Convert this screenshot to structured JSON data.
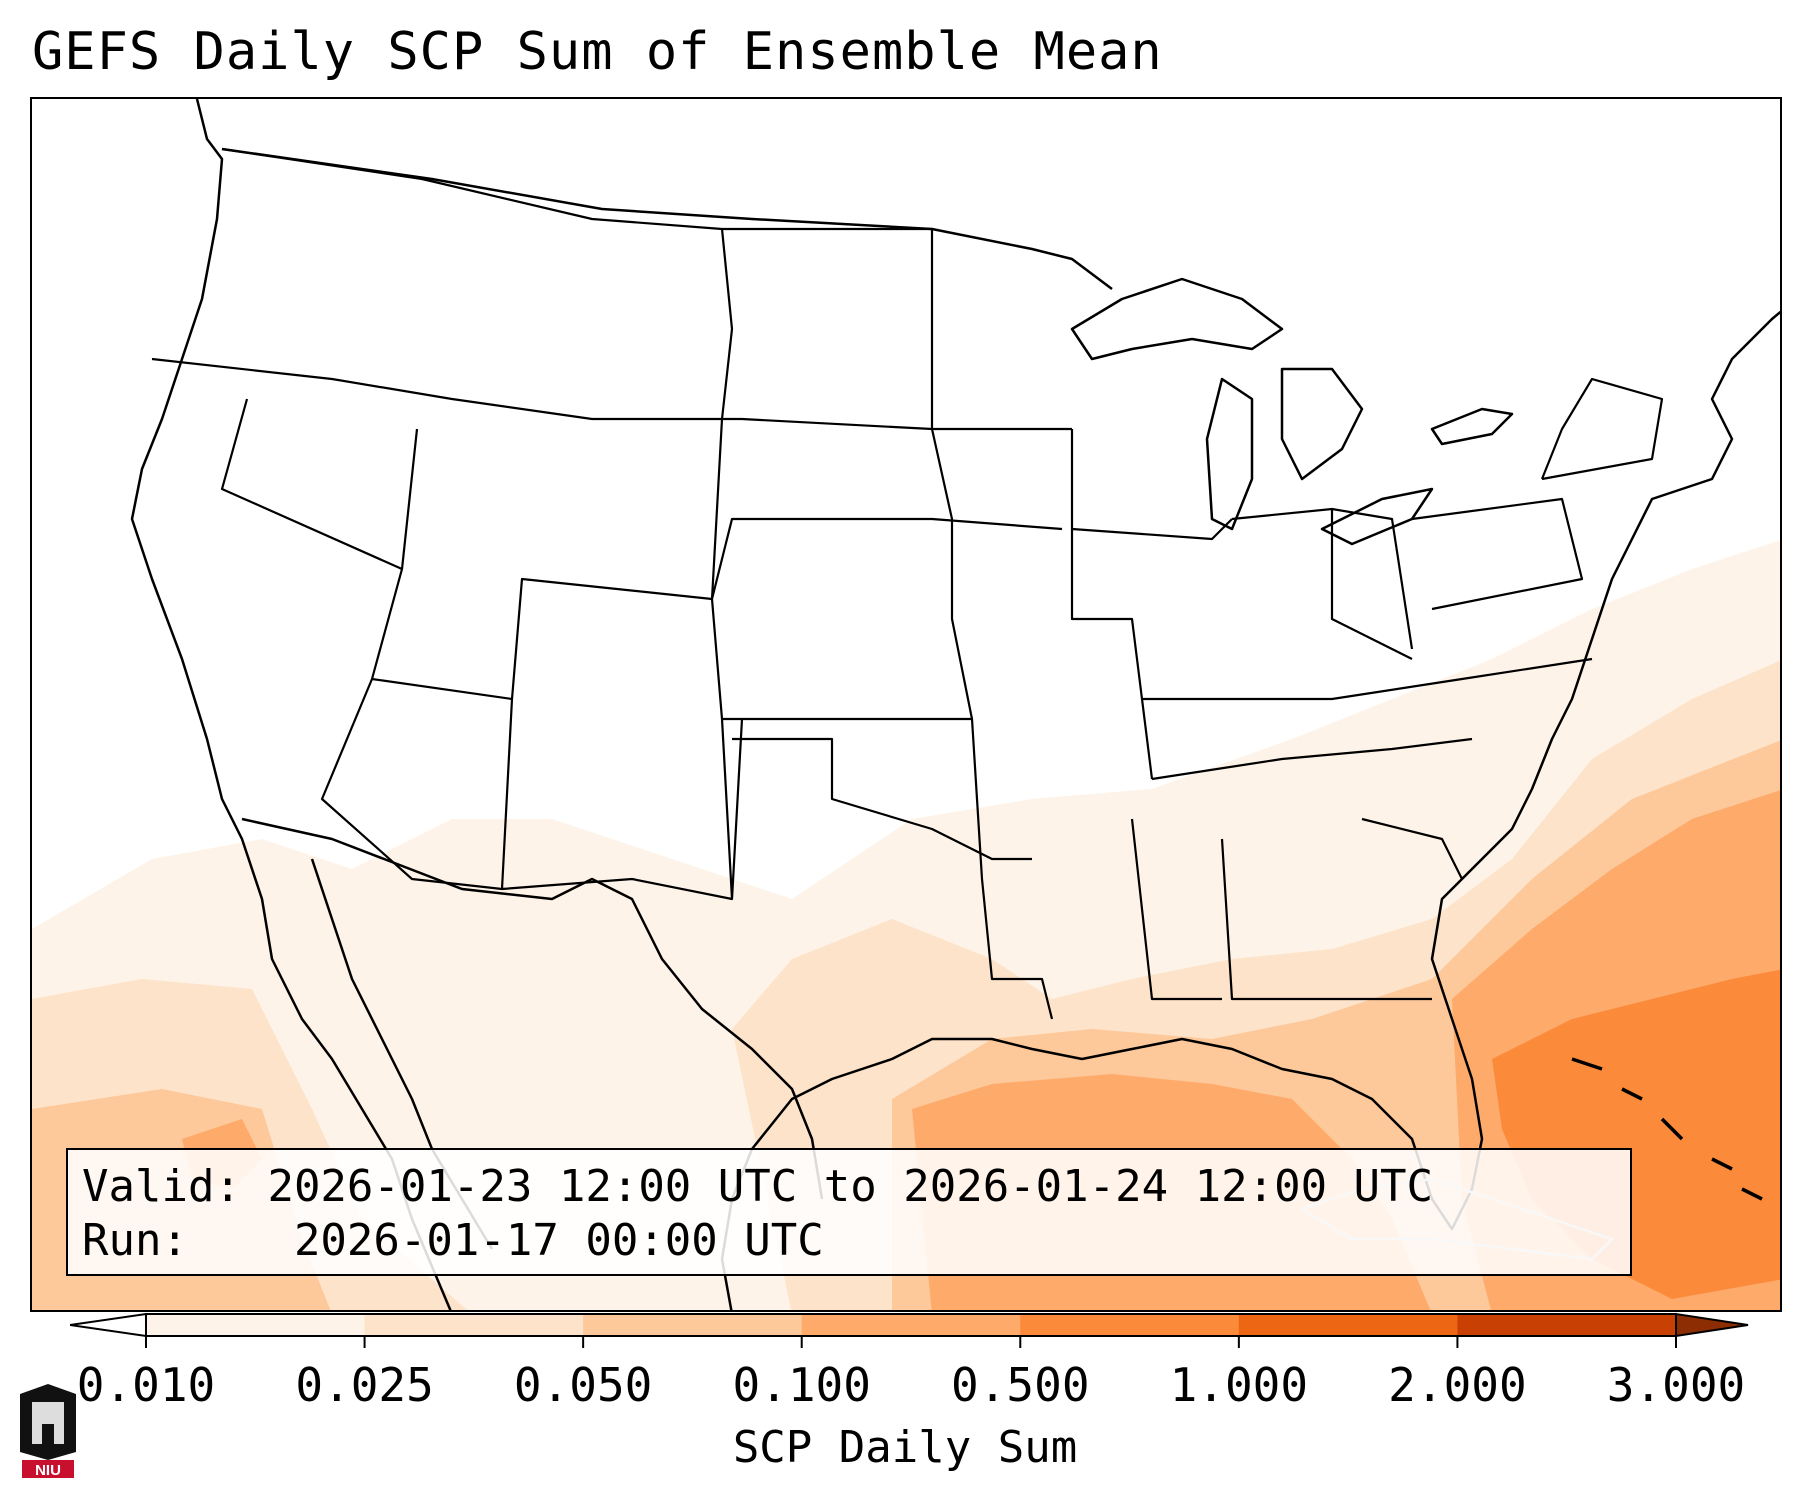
{
  "title": "GEFS Daily SCP Sum of Ensemble Mean",
  "info": {
    "valid_label": "Valid:",
    "valid_value": "2026-01-23 12:00 UTC to 2026-01-24 12:00 UTC",
    "run_label": "Run:",
    "run_value": "2026-01-17 00:00 UTC"
  },
  "colorbar": {
    "label": "SCP Daily Sum",
    "ticks": [
      "0.010",
      "0.025",
      "0.050",
      "0.100",
      "0.500",
      "1.000",
      "2.000",
      "3.000"
    ],
    "colors": [
      "#fef3e8",
      "#fde3c9",
      "#fdc89a",
      "#fdaa6a",
      "#fb8a3a",
      "#ec6614",
      "#c94005"
    ],
    "under_color": "#ffffff",
    "over_color": "#8c2d04"
  },
  "logo": {
    "text": "NIU",
    "colors": [
      "#c8102e",
      "#000000"
    ]
  }
}
